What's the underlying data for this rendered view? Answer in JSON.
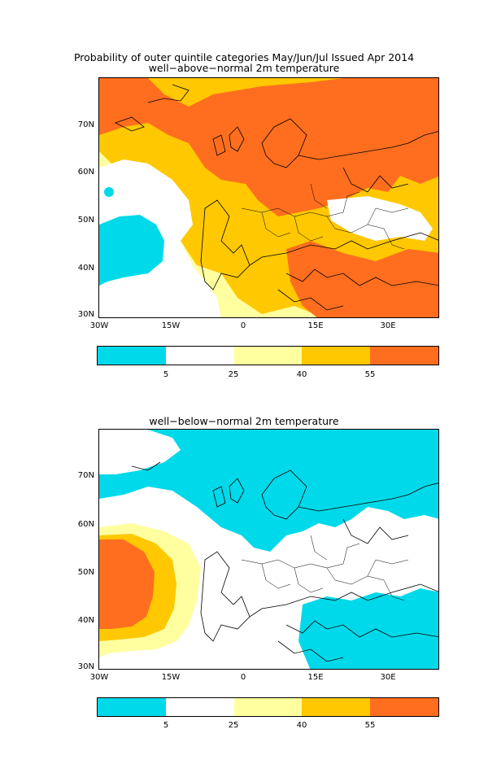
{
  "figure": {
    "title_line1": "Probability of outer quintile categories May/Jun/Jul Issued Apr 2014",
    "panel1_title": "well−above−normal 2m temperature",
    "panel2_title": "well−below−normal 2m temperature"
  },
  "axes": {
    "lat_labels": [
      "70N",
      "60N",
      "50N",
      "40N",
      "30N"
    ],
    "lon_labels": [
      "30W",
      "15W",
      "0",
      "15E",
      "30E"
    ]
  },
  "colorbar": {
    "labels": [
      "5",
      "25",
      "40",
      "55"
    ],
    "colors": [
      "#00d9e9",
      "#ffffff",
      "#ffff9f",
      "#ffc800",
      "#ff6e1e"
    ]
  },
  "colors": {
    "cyan": "#00d9e9",
    "light_yellow": "#ffff9f",
    "gold": "#ffc800",
    "orange": "#ff6e1e"
  }
}
